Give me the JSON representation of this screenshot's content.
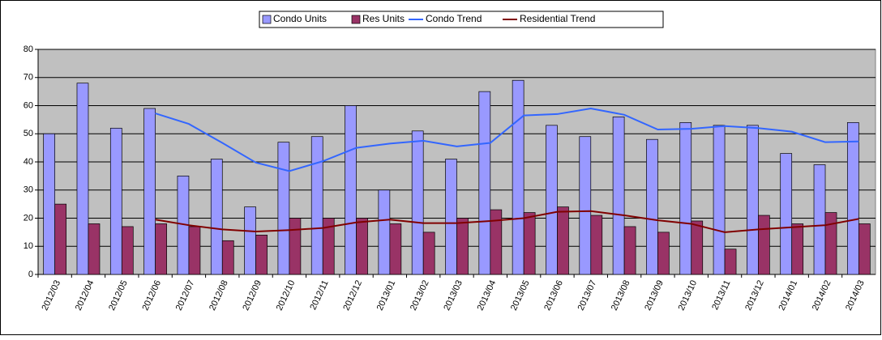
{
  "chart_data": {
    "type": "bar",
    "categories": [
      "2012/03",
      "2012/04",
      "2012/05",
      "2012/06",
      "2012/07",
      "2012/08",
      "2012/09",
      "2012/10",
      "2012/11",
      "2012/12",
      "2013/01",
      "2013/02",
      "2013/03",
      "2013/04",
      "2013/05",
      "2013/06",
      "2013/07",
      "2013/08",
      "2013/09",
      "2013/10",
      "2013/11",
      "2013/12",
      "2014/01",
      "2014/02",
      "2014/03"
    ],
    "series": [
      {
        "name": "Condo Units",
        "type": "bar",
        "color": "#9999ff",
        "values": [
          50,
          68,
          52,
          59,
          35,
          41,
          24,
          47,
          49,
          60,
          30,
          51,
          41,
          65,
          69,
          53,
          49,
          56,
          48,
          54,
          53,
          53,
          43,
          39,
          54
        ]
      },
      {
        "name": "Res Units",
        "type": "bar",
        "color": "#993366",
        "values": [
          25,
          18,
          17,
          18,
          17,
          12,
          14,
          20,
          20,
          20,
          18,
          15,
          20,
          23,
          22,
          24,
          21,
          17,
          15,
          19,
          9,
          21,
          18,
          22,
          18
        ]
      },
      {
        "name": "Condo Trend",
        "type": "line",
        "color": "#3366ff",
        "values": [
          null,
          null,
          null,
          57.25,
          53.5,
          46.75,
          39.75,
          36.75,
          40.25,
          45,
          46.5,
          47.5,
          45.5,
          46.75,
          56.5,
          57,
          59,
          56.75,
          51.5,
          51.75,
          52.75,
          52,
          50.75,
          47,
          47.25
        ]
      },
      {
        "name": "Residential Trend",
        "type": "line",
        "color": "#800000",
        "values": [
          null,
          null,
          null,
          19.5,
          17.5,
          16,
          15.25,
          15.75,
          16.5,
          18.5,
          19.5,
          18.25,
          18.25,
          19,
          20,
          22.25,
          22.5,
          21,
          19.25,
          18,
          15,
          16,
          16.75,
          17.5,
          19.75
        ]
      }
    ],
    "ylim": [
      0,
      80
    ],
    "yticks": [
      0,
      10,
      20,
      30,
      40,
      50,
      60,
      70,
      80
    ],
    "grid": true,
    "legend": "top"
  }
}
